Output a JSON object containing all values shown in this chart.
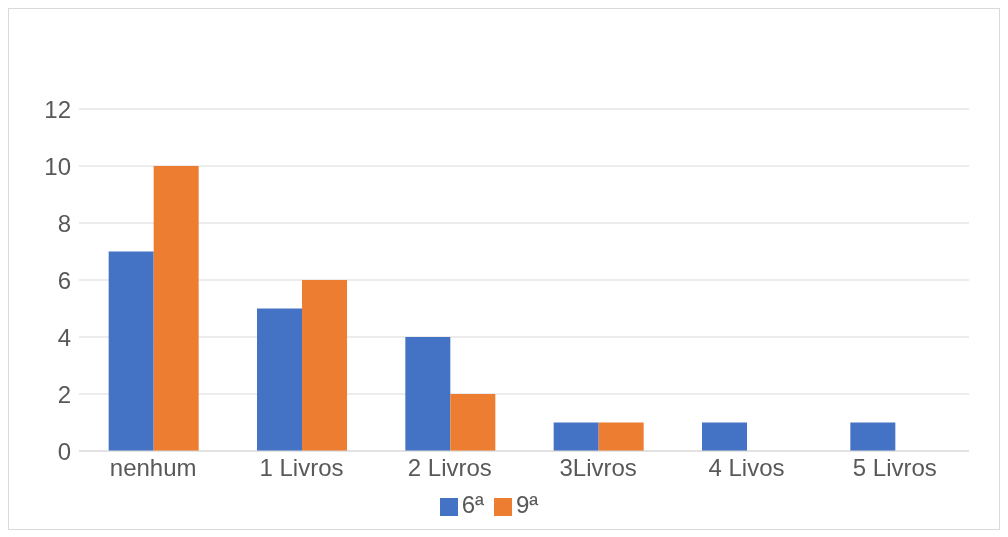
{
  "chart_data": {
    "type": "bar",
    "categories": [
      "nenhum",
      "1 Livros",
      "2 Livros",
      "3Livros",
      "4 Livos",
      "5 Livros"
    ],
    "series": [
      {
        "name": "6ª",
        "color": "#4472c4",
        "values": [
          7,
          5,
          4,
          1,
          1,
          1
        ]
      },
      {
        "name": "9ª",
        "color": "#ed7d31",
        "values": [
          10,
          6,
          2,
          1,
          0,
          0
        ]
      }
    ],
    "ylim": [
      0,
      12
    ],
    "yticks": [
      0,
      2,
      4,
      6,
      8,
      10,
      12
    ],
    "grid": "y",
    "legend": "bottom"
  }
}
